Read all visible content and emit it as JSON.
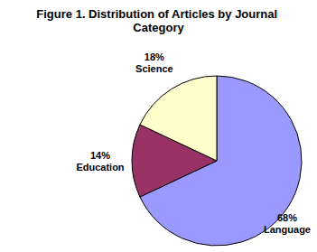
{
  "chart_data": {
    "type": "pie",
    "title": "Figure 1. Distribution of Articles by Journal Category",
    "categories": [
      "Language",
      "Education",
      "Science"
    ],
    "values": [
      68,
      14,
      18
    ],
    "value_labels": [
      "68%",
      "14%",
      "18%"
    ],
    "colors": [
      "#9999ff",
      "#993366",
      "#ffffcc"
    ],
    "data_labels": true
  }
}
